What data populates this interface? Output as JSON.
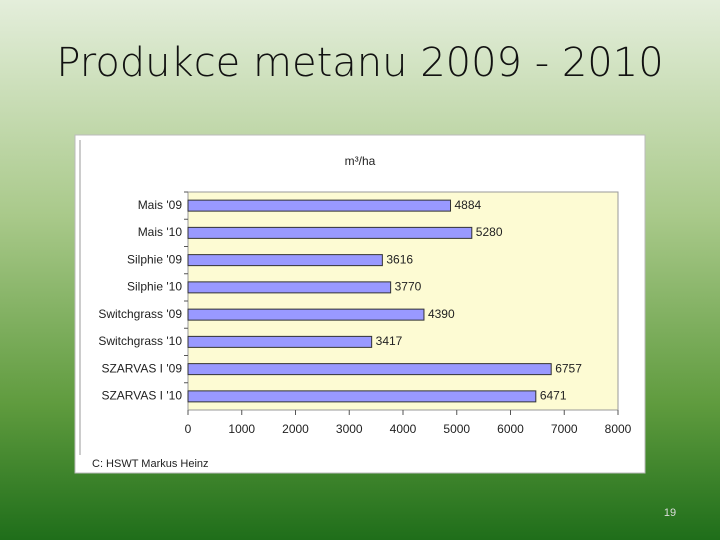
{
  "slide": {
    "title": "Produkce metanu 2009 - 2010",
    "page_number": "19"
  },
  "chart_data": {
    "type": "hbar",
    "x_label": "m³/ha",
    "source": "C: HSWT Markus Heinz",
    "categories": [
      "Mais '09",
      "Mais '10",
      "Silphie '09",
      "Silphie '10",
      "Switchgrass '09",
      "Switchgrass '10",
      "SZARVAS I '09",
      "SZARVAS I '10"
    ],
    "values": [
      4884,
      5280,
      3616,
      3770,
      4390,
      3417,
      6757,
      6471
    ],
    "color": "#9999ff",
    "xlim": [
      0,
      8000
    ],
    "xticks": [
      0,
      1000,
      2000,
      3000,
      4000,
      5000,
      6000,
      7000,
      8000
    ]
  }
}
